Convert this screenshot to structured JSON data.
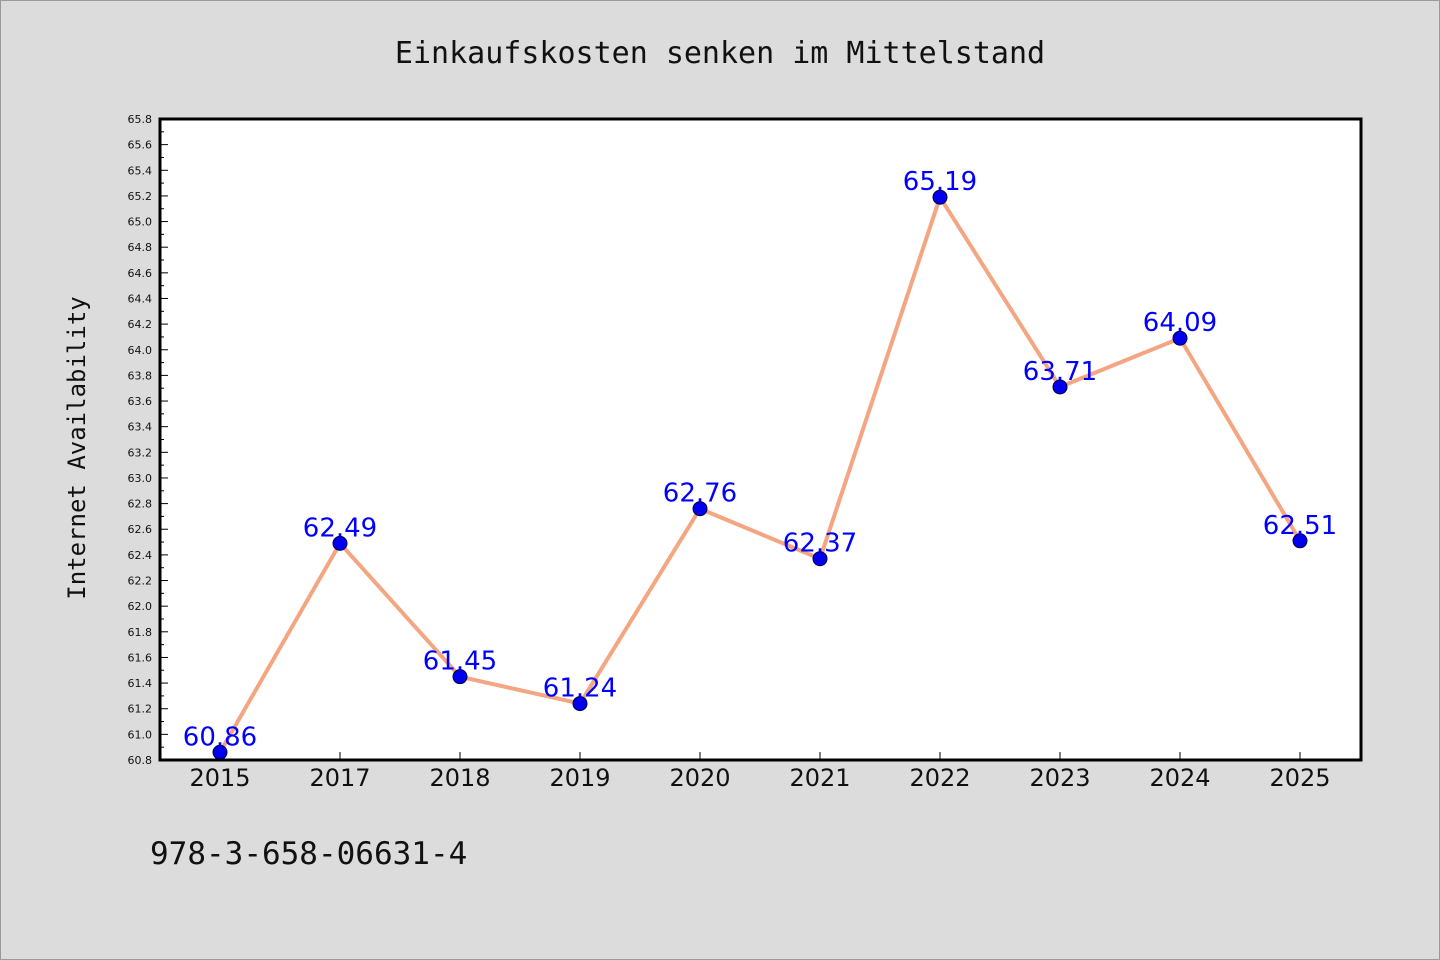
{
  "colors": {
    "background": "#dcdcdc",
    "plot_background": "#ffffff",
    "line": "#f4a582",
    "marker": "#0000ee",
    "data_label": "#0000ff",
    "text": "#111111"
  },
  "footer": {
    "isbn": "978-3-658-06631-4"
  },
  "chart_data": {
    "type": "line",
    "title": "Einkaufskosten senken im Mittelstand",
    "xlabel": "",
    "ylabel": "Internet Availability",
    "categories": [
      "2015",
      "2017",
      "2018",
      "2019",
      "2020",
      "2021",
      "2022",
      "2023",
      "2024",
      "2025"
    ],
    "series": [
      {
        "values": [
          60.86,
          62.49,
          61.45,
          61.24,
          62.76,
          62.37,
          65.19,
          63.71,
          64.09,
          62.51
        ],
        "labels": [
          "60.86",
          "62.49",
          "61.45",
          "61.24",
          "62.76",
          "62.37",
          "65.19",
          "63.71",
          "64.09",
          "62.51"
        ]
      }
    ],
    "ylim": [
      60.8,
      65.8
    ],
    "yticks": [
      "60.8",
      "61.0",
      "61.2",
      "61.4",
      "61.6",
      "61.8",
      "62.0",
      "62.2",
      "62.4",
      "62.6",
      "62.8",
      "63.0",
      "63.2",
      "63.4",
      "63.6",
      "63.8",
      "64.0",
      "64.2",
      "64.4",
      "64.6",
      "64.8",
      "65.0",
      "65.2",
      "65.4",
      "65.6",
      "65.8"
    ],
    "grid": false,
    "legend": "none",
    "marker": "circle"
  }
}
